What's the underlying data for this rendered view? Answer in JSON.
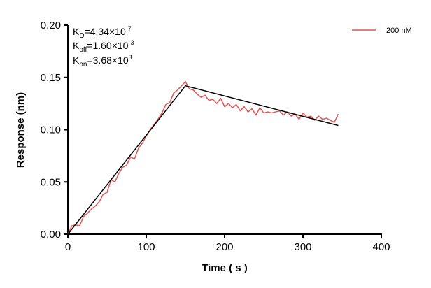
{
  "chart_data": {
    "type": "line",
    "xlabel": "Time ( s )",
    "ylabel": "Response (nm)",
    "xlim": [
      0,
      400
    ],
    "ylim": [
      0,
      0.2
    ],
    "xticks": [
      "0",
      "100",
      "200",
      "300",
      "400"
    ],
    "yticks": [
      "0.00",
      "0.05",
      "0.10",
      "0.15",
      "0.20"
    ],
    "grid": false,
    "legend_placement": "top-right",
    "annotations": {
      "kd": {
        "base": "K",
        "sub": "D",
        "value": "=4.34×10",
        "exp": "-7"
      },
      "koff": {
        "base": "K",
        "sub": "off",
        "value": "=1.60×10",
        "exp": "-3"
      },
      "kon": {
        "base": "K",
        "sub": "on",
        "value": "=3.68×10",
        "exp": "3"
      }
    },
    "series": [
      {
        "name": "200 nM",
        "color": "#e05555",
        "x": [
          0,
          5,
          10,
          15,
          20,
          25,
          30,
          35,
          40,
          45,
          50,
          55,
          60,
          65,
          70,
          75,
          80,
          85,
          90,
          95,
          100,
          105,
          110,
          115,
          120,
          125,
          130,
          135,
          140,
          145,
          150,
          155,
          160,
          165,
          170,
          175,
          180,
          185,
          190,
          195,
          200,
          205,
          210,
          215,
          220,
          225,
          230,
          235,
          240,
          245,
          250,
          255,
          260,
          265,
          270,
          275,
          280,
          285,
          290,
          295,
          300,
          305,
          310,
          315,
          320,
          325,
          330,
          335,
          340,
          345
        ],
        "y": [
          0.0,
          0.008,
          0.009,
          0.008,
          0.017,
          0.02,
          0.024,
          0.027,
          0.031,
          0.038,
          0.04,
          0.052,
          0.05,
          0.058,
          0.064,
          0.066,
          0.074,
          0.072,
          0.082,
          0.087,
          0.094,
          0.1,
          0.105,
          0.11,
          0.116,
          0.124,
          0.126,
          0.135,
          0.138,
          0.142,
          0.146,
          0.139,
          0.138,
          0.134,
          0.131,
          0.133,
          0.128,
          0.129,
          0.125,
          0.13,
          0.122,
          0.125,
          0.121,
          0.124,
          0.118,
          0.122,
          0.117,
          0.12,
          0.114,
          0.121,
          0.116,
          0.117,
          0.116,
          0.117,
          0.118,
          0.114,
          0.117,
          0.113,
          0.115,
          0.11,
          0.116,
          0.112,
          0.113,
          0.109,
          0.113,
          0.11,
          0.111,
          0.109,
          0.107,
          0.115
        ]
      }
    ],
    "fit": {
      "color": "#000000",
      "x": [
        0,
        150,
        345
      ],
      "y": [
        0.0,
        0.142,
        0.104
      ]
    }
  }
}
